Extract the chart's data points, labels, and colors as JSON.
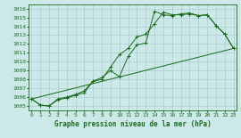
{
  "xlabel": "Graphe pression niveau de la mer (hPa)",
  "background_color": "#cce8e8",
  "grid_color": "#aacece",
  "line_color": "#1a6b1a",
  "x_ticks": [
    0,
    1,
    2,
    3,
    4,
    5,
    6,
    7,
    8,
    9,
    10,
    11,
    12,
    13,
    14,
    15,
    16,
    17,
    18,
    19,
    20,
    21,
    22,
    23
  ],
  "ylim": [
    1004.5,
    1016.5
  ],
  "xlim": [
    -0.3,
    23.3
  ],
  "yticks": [
    1005,
    1006,
    1007,
    1008,
    1009,
    1010,
    1011,
    1012,
    1013,
    1014,
    1015,
    1016
  ],
  "line1": {
    "x": [
      0,
      1,
      2,
      3,
      4,
      5,
      6,
      7,
      8,
      9,
      10,
      11,
      12,
      13,
      14,
      15,
      16,
      17,
      18,
      19,
      20,
      21,
      22,
      23
    ],
    "y": [
      1005.8,
      1005.1,
      1005.0,
      1005.7,
      1005.9,
      1006.2,
      1006.5,
      1007.8,
      1008.0,
      1009.4,
      1010.8,
      1011.5,
      1012.8,
      1013.1,
      1014.3,
      1015.6,
      1015.3,
      1015.3,
      1015.4,
      1015.2,
      1015.3,
      1014.1,
      1013.1,
      1011.5
    ]
  },
  "line2": {
    "x": [
      0,
      1,
      2,
      3,
      4,
      5,
      6,
      7,
      8,
      9,
      10,
      11,
      12,
      13,
      14,
      15,
      16,
      17,
      18,
      19,
      20,
      21,
      22,
      23
    ],
    "y": [
      1005.8,
      1005.1,
      1005.0,
      1005.8,
      1006.0,
      1006.3,
      1006.7,
      1007.8,
      1008.2,
      1009.0,
      1008.3,
      1010.6,
      1011.9,
      1012.1,
      1015.7,
      1015.3,
      1015.2,
      1015.4,
      1015.5,
      1015.2,
      1015.3,
      1014.1,
      1013.1,
      1011.5
    ]
  },
  "line3": {
    "x": [
      0,
      23
    ],
    "y": [
      1005.8,
      1011.5
    ]
  }
}
